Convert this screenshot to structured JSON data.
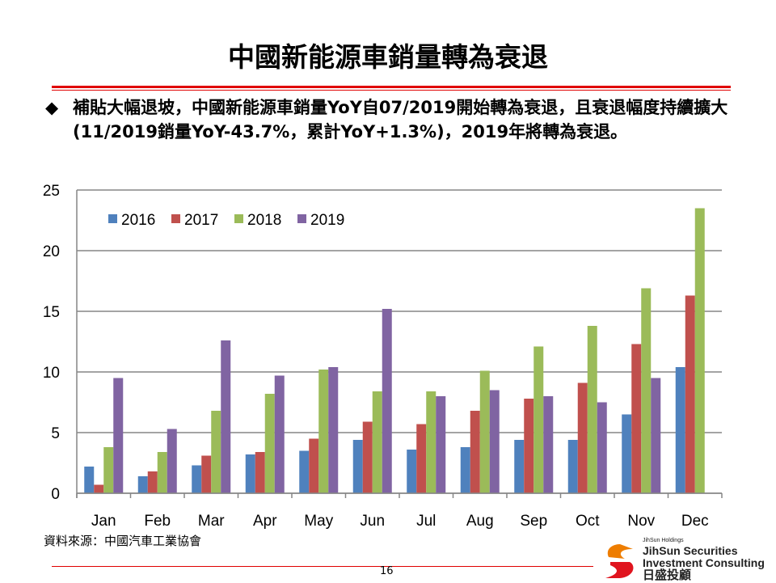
{
  "title": "中國新能源車銷量轉為衰退",
  "bullet": {
    "icon": "diamond-bullet-icon",
    "symbol": "◆",
    "text": "補貼大幅退坡，中國新能源車銷量YoY自07/2019開始轉為衰退，且衰退幅度持續擴大(11/2019銷量YoY-43.7%，累計YoY+1.3%)，2019年將轉為衰退。"
  },
  "chart_data": {
    "type": "bar",
    "categories": [
      "Jan",
      "Feb",
      "Mar",
      "Apr",
      "May",
      "Jun",
      "Jul",
      "Aug",
      "Sep",
      "Oct",
      "Nov",
      "Dec"
    ],
    "series": [
      {
        "name": "2016",
        "color": "#4f81bd",
        "values": [
          2.2,
          1.4,
          2.3,
          3.2,
          3.5,
          4.4,
          3.6,
          3.8,
          4.4,
          4.4,
          6.5,
          10.4
        ]
      },
      {
        "name": "2017",
        "color": "#c0504d",
        "values": [
          0.7,
          1.8,
          3.1,
          3.4,
          4.5,
          5.9,
          5.7,
          6.8,
          7.8,
          9.1,
          12.3,
          16.3
        ]
      },
      {
        "name": "2018",
        "color": "#9bbb59",
        "values": [
          3.8,
          3.4,
          6.8,
          8.2,
          10.2,
          8.4,
          8.4,
          10.1,
          12.1,
          13.8,
          16.9,
          23.5
        ]
      },
      {
        "name": "2019",
        "color": "#8064a2",
        "values": [
          9.5,
          5.3,
          12.6,
          9.7,
          10.4,
          15.2,
          8.0,
          8.5,
          8.0,
          7.5,
          9.5,
          null
        ]
      }
    ],
    "yticks": [
      "0",
      "5",
      "10",
      "15",
      "20",
      "25"
    ],
    "ylim": [
      0,
      25
    ],
    "legend": "top-left",
    "grid": true
  },
  "source": "資料來源：中國汽車工業協會",
  "page_number": "16",
  "logo": {
    "holdings": "JihSun Holdings",
    "line1": "JihSun Securities",
    "line2": "Investment Consulting",
    "chinese": "日盛投顧"
  }
}
